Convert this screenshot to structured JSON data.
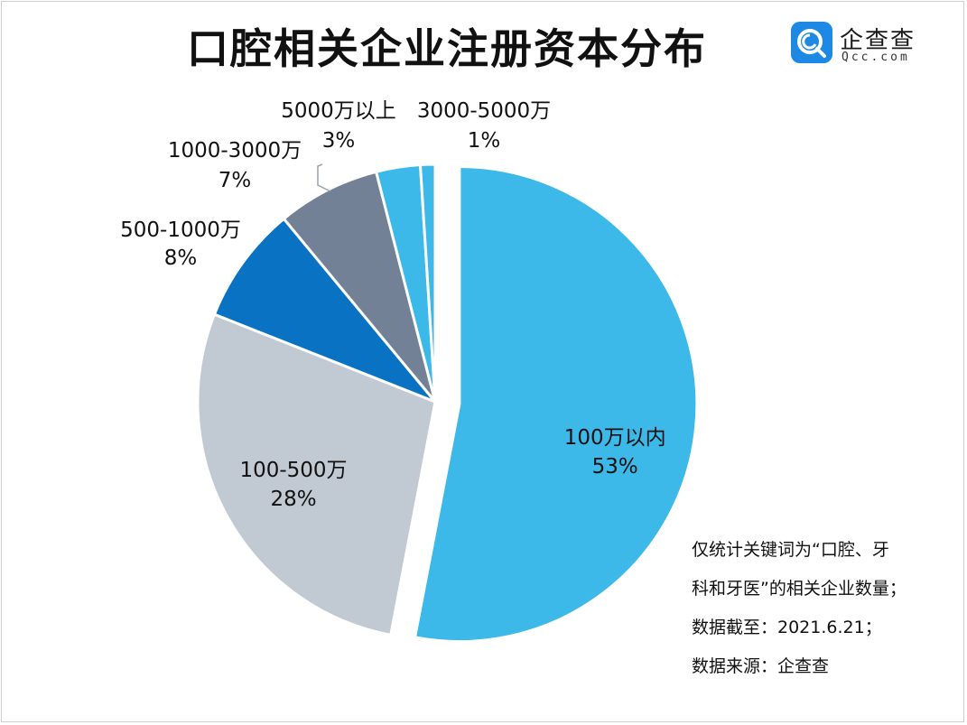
{
  "logo": {
    "name": "企查查",
    "domain": "Qcc.com",
    "color": "#1e88e5"
  },
  "notes": [
    "仅统计关键词为“口腔、牙",
    "科和牙医”的相关企业数量；",
    "数据截至：2021.6.21；",
    "数据来源：企查查"
  ],
  "chart_data": {
    "type": "pie",
    "title": "口腔相关企业注册资本分布",
    "slices": [
      {
        "name": "100万以内",
        "value": 53,
        "label": "53%",
        "color": "#3cb9e8",
        "label_inside": true,
        "exploded": true
      },
      {
        "name": "100-500万",
        "value": 28,
        "label": "28%",
        "color": "#c1c9d3",
        "label_inside": true,
        "exploded": false
      },
      {
        "name": "500-1000万",
        "value": 8,
        "label": "8%",
        "color": "#0a72c2",
        "label_inside": false,
        "exploded": false
      },
      {
        "name": "1000-3000万",
        "value": 7,
        "label": "7%",
        "color": "#728196",
        "label_inside": false,
        "exploded": false
      },
      {
        "name": "5000万以上",
        "value": 3,
        "label": "3%",
        "color": "#3cb9e8",
        "label_inside": false,
        "exploded": false
      },
      {
        "name": "3000-5000万",
        "value": 1,
        "label": "1%",
        "color": "#3cb9e8",
        "label_inside": false,
        "exploded": false
      }
    ],
    "legend": "none"
  }
}
